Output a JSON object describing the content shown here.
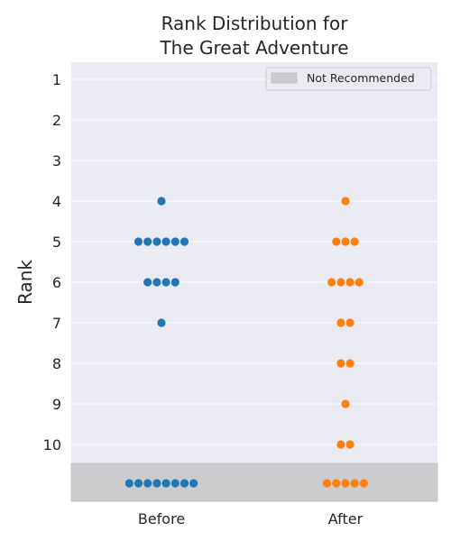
{
  "chart_data": {
    "type": "scatter",
    "title_lines": [
      "Rank Distribution for",
      "The Great Adventure"
    ],
    "xlabel": "",
    "ylabel": "Rank",
    "categories": [
      "Before",
      "After"
    ],
    "rank_ticks": [
      "1",
      "2",
      "3",
      "4",
      "5",
      "6",
      "7",
      "8",
      "9",
      "10"
    ],
    "y_range": [
      1,
      10
    ],
    "y_inverted": true,
    "grid": true,
    "legend": {
      "placement": "top-right",
      "label": "Not Recommended"
    },
    "series": [
      {
        "category": "Before",
        "counts": [
          {
            "rank": 4,
            "count": 1
          },
          {
            "rank": 5,
            "count": 6
          },
          {
            "rank": 6,
            "count": 4
          },
          {
            "rank": 7,
            "count": 1
          },
          {
            "rank": "Not Recommended",
            "count": 8
          }
        ]
      },
      {
        "category": "After",
        "counts": [
          {
            "rank": 4,
            "count": 1
          },
          {
            "rank": 5,
            "count": 3
          },
          {
            "rank": 6,
            "count": 4
          },
          {
            "rank": 7,
            "count": 2
          },
          {
            "rank": 8,
            "count": 2
          },
          {
            "rank": 9,
            "count": 1
          },
          {
            "rank": 10,
            "count": 2
          },
          {
            "rank": "Not Recommended",
            "count": 5
          }
        ]
      }
    ],
    "colors": {
      "Before": "#1f77b4",
      "After": "#ff7f0e",
      "plot_background": "#eaeaf2",
      "not_recommended_band": "#cccccf",
      "gridline": "#ffffff",
      "text": "#262626"
    }
  }
}
